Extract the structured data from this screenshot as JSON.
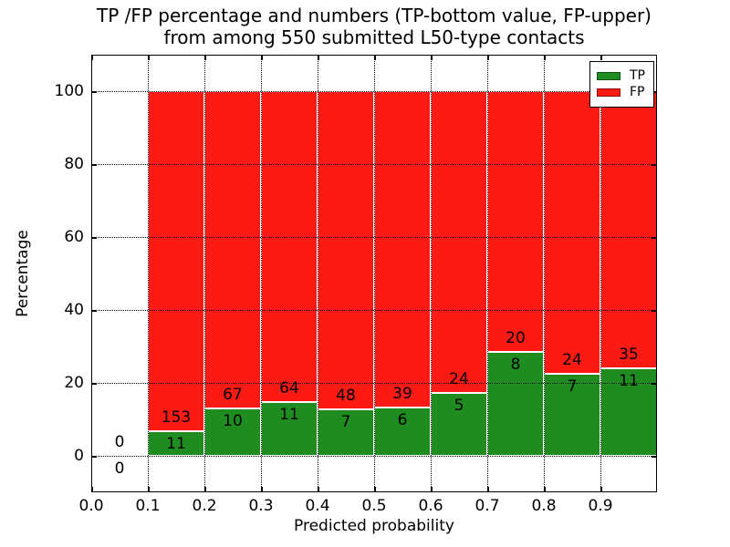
{
  "title_line1": "TP /FP percentage and numbers (TP-bottom value, FP-upper)",
  "title_line2": "from among 550 submitted L50-type contacts",
  "chart_data": {
    "type": "bar",
    "stacked": true,
    "normalized": "each bar totals 100%",
    "total_contacts": 550,
    "title": "TP /FP percentage and numbers (TP-bottom value, FP-upper) from among 550 submitted L50-type contacts",
    "xlabel": "Predicted probability",
    "ylabel": "Percentage",
    "xlim": [
      0.0,
      1.0
    ],
    "ylim": [
      -10,
      110
    ],
    "xticks": [
      0.0,
      0.1,
      0.2,
      0.3,
      0.4,
      0.5,
      0.6,
      0.7,
      0.8,
      0.9
    ],
    "yticks": [
      0,
      20,
      40,
      60,
      80,
      100
    ],
    "grid": "dotted, drawn above bars",
    "legend_position": "upper right",
    "series": [
      {
        "name": "TP",
        "color": "#1e8c1e",
        "stack_order": "bottom"
      },
      {
        "name": "FP",
        "color": "#fc1a15",
        "stack_order": "top"
      }
    ],
    "bins": [
      {
        "range": [
          0.0,
          0.1
        ],
        "tp": 0,
        "fp": 0
      },
      {
        "range": [
          0.1,
          0.2
        ],
        "tp": 11,
        "fp": 153
      },
      {
        "range": [
          0.2,
          0.3
        ],
        "tp": 10,
        "fp": 67
      },
      {
        "range": [
          0.3,
          0.4
        ],
        "tp": 11,
        "fp": 64
      },
      {
        "range": [
          0.4,
          0.5
        ],
        "tp": 7,
        "fp": 48
      },
      {
        "range": [
          0.5,
          0.6
        ],
        "tp": 6,
        "fp": 39
      },
      {
        "range": [
          0.6,
          0.7
        ],
        "tp": 5,
        "fp": 24
      },
      {
        "range": [
          0.7,
          0.8
        ],
        "tp": 8,
        "fp": 20
      },
      {
        "range": [
          0.8,
          0.9
        ],
        "tp": 7,
        "fp": 24
      },
      {
        "range": [
          0.9,
          1.0
        ],
        "tp": 11,
        "fp": 35
      }
    ]
  },
  "legend": {
    "tp_label": "TP",
    "fp_label": "FP"
  },
  "colors": {
    "tp": "#1e8c1e",
    "fp": "#fc1a15",
    "grid": "#000000",
    "bar_edge": "#ffffff",
    "background": "#ffffff",
    "text": "#000000"
  }
}
